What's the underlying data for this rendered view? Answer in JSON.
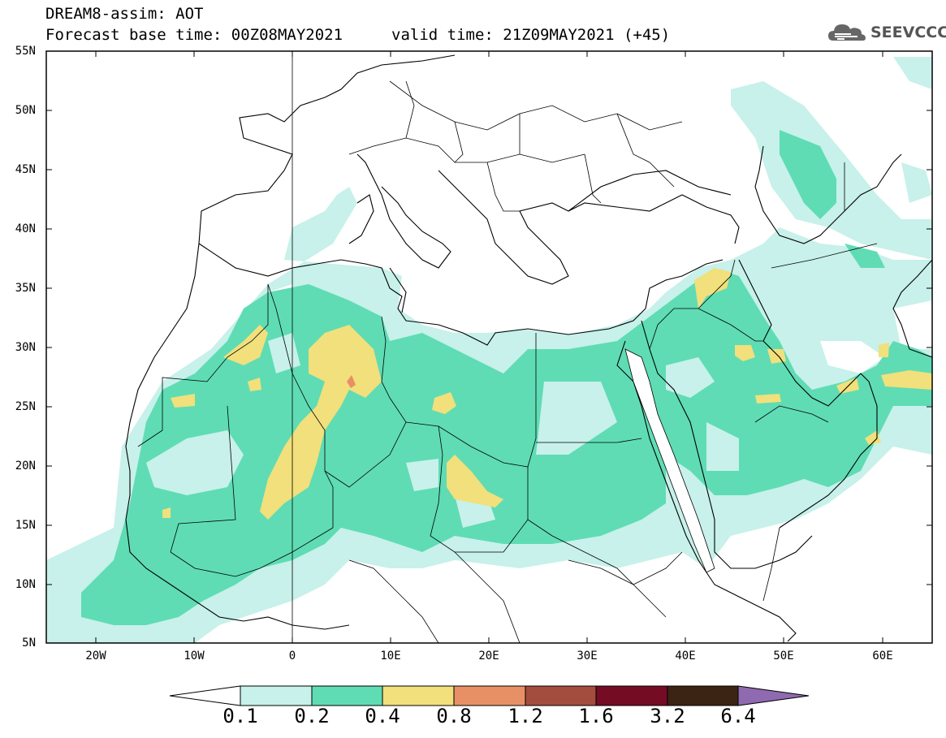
{
  "header": {
    "title": "DREAM8-assim: AOT",
    "base_time": "Forecast base time: 00Z08MAY2021",
    "valid_time": "valid time: 21Z09MAY2021 (+45)"
  },
  "logo": {
    "text": "SEEVCCC",
    "icon": "cloud-icon"
  },
  "map": {
    "projection": "lat-lon",
    "lon_range": [
      -25,
      65
    ],
    "lat_range": [
      5,
      55
    ],
    "lat_labels": [
      "55N",
      "50N",
      "45N",
      "40N",
      "35N",
      "30N",
      "25N",
      "20N",
      "15N",
      "10N",
      "5N"
    ],
    "lon_labels": [
      "20W",
      "10W",
      "0",
      "10E",
      "20E",
      "30E",
      "40E",
      "50E",
      "60E"
    ]
  },
  "colorbar": {
    "labels": [
      "0.1",
      "0.2",
      "0.4",
      "0.8",
      "1.2",
      "1.6",
      "3.2",
      "6.4"
    ],
    "colors": [
      "#ffffff",
      "#c7f1ea",
      "#5fdcb4",
      "#f1e07b",
      "#e79065",
      "#a34d3e",
      "#740c24",
      "#3c2415",
      "#8f6ab0"
    ]
  }
}
